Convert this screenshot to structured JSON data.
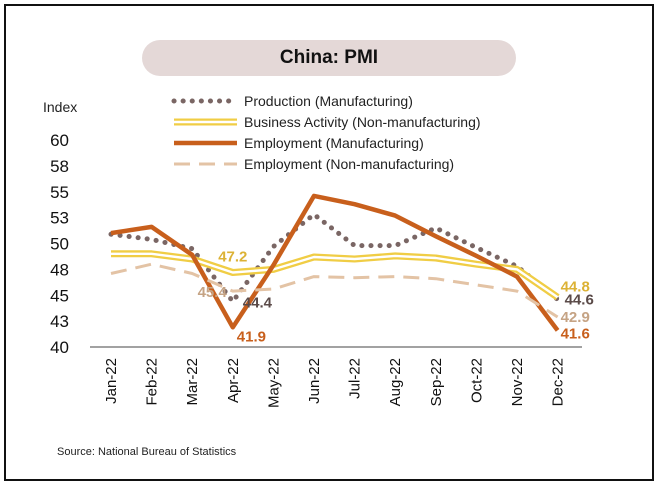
{
  "colors": {
    "production": "#7a6664",
    "business_activity": "#f0cd45",
    "employment_manufacturing": "#c85f1c",
    "employment_non_manufacturing": "#e3c3a5",
    "title_bg": "#e4d8d7"
  },
  "source": "Source: National Bureau of Statistics",
  "chart_data": {
    "type": "line",
    "title": "China: PMI",
    "ylabel": "Index",
    "xlabel": "",
    "ylim": [
      40,
      60
    ],
    "y_ticks": [
      "60",
      "58",
      "55",
      "53",
      "50",
      "48",
      "45",
      "43",
      "40"
    ],
    "y_tick_values": [
      60,
      57.5,
      55,
      52.5,
      50,
      47.5,
      45,
      42.5,
      40
    ],
    "categories": [
      "Jan-22",
      "Feb-22",
      "Mar-22",
      "Apr-22",
      "May-22",
      "Jun-22",
      "Jul-22",
      "Aug-22",
      "Sep-22",
      "Oct-22",
      "Nov-22",
      "Dec-22"
    ],
    "legend_position": "top",
    "series": [
      {
        "name": "Production (Manufacturing)",
        "style": "dotted",
        "values": [
          50.9,
          50.4,
          49.5,
          44.4,
          49.7,
          52.8,
          49.8,
          49.8,
          51.5,
          49.6,
          47.8,
          44.6
        ]
      },
      {
        "name": "Business Activity (Non-manufacturing)",
        "style": "double",
        "values": [
          49.0,
          49.0,
          48.5,
          47.2,
          47.5,
          48.7,
          48.5,
          48.8,
          48.6,
          48.0,
          47.5,
          44.8
        ]
      },
      {
        "name": "Employment (Manufacturing)",
        "style": "thick",
        "values": [
          51.0,
          51.6,
          48.9,
          41.9,
          47.9,
          54.6,
          53.8,
          52.7,
          50.7,
          48.8,
          46.8,
          41.6
        ]
      },
      {
        "name": "Employment (Non-manufacturing)",
        "style": "dashed",
        "values": [
          47.1,
          48.0,
          47.1,
          45.4,
          45.6,
          46.8,
          46.7,
          46.8,
          46.6,
          46.0,
          45.4,
          42.9
        ]
      }
    ],
    "annotations": [
      {
        "text": "47.2",
        "series": 1,
        "index": 3
      },
      {
        "text": "45.4",
        "series": 3,
        "index": 3
      },
      {
        "text": "44.4",
        "series": 0,
        "index": 3
      },
      {
        "text": "41.9",
        "series": 2,
        "index": 3
      },
      {
        "text": "44.8",
        "series": 1,
        "index": 11
      },
      {
        "text": "44.6",
        "series": 0,
        "index": 11
      },
      {
        "text": "42.9",
        "series": 3,
        "index": 11
      },
      {
        "text": "41.6",
        "series": 2,
        "index": 11
      }
    ]
  }
}
